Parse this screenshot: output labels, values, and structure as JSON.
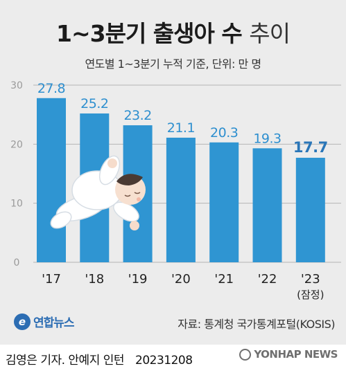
{
  "header": {
    "title_bold": "1~3분기 출생아 수",
    "title_light": "추이",
    "subtitle": "연도별 1~3분기 누적 기준, 단위: 만 명"
  },
  "chart_data": {
    "type": "bar",
    "categories": [
      "'17",
      "'18",
      "'19",
      "'20",
      "'21",
      "'22",
      "'23"
    ],
    "category_notes": [
      "",
      "",
      "",
      "",
      "",
      "",
      "(잠정)"
    ],
    "values": [
      27.8,
      25.2,
      23.2,
      21.1,
      20.3,
      19.3,
      17.7
    ],
    "value_labels": [
      "27.8",
      "25.2",
      "23.2",
      "21.1",
      "20.3",
      "19.3",
      "17.7"
    ],
    "highlight_index": 6,
    "yticks": [
      "0",
      "10",
      "20",
      "30"
    ],
    "ylim": [
      0,
      30
    ],
    "grid": true,
    "colors": {
      "bar": "#2f95d2",
      "label": "#2e8fcf",
      "highlight_label": "#2a76b8",
      "grid": "#b5b5b5"
    }
  },
  "footer": {
    "logo_text": "연합뉴스",
    "logo_icon": "yonhap-logo-icon",
    "source": "자료: 통계청 국가통계포털(KOSIS)",
    "credit_authors": "김영은 기자. 안예지 인턴",
    "credit_date": "20231208",
    "watermark": "YONHAP NEWS"
  }
}
